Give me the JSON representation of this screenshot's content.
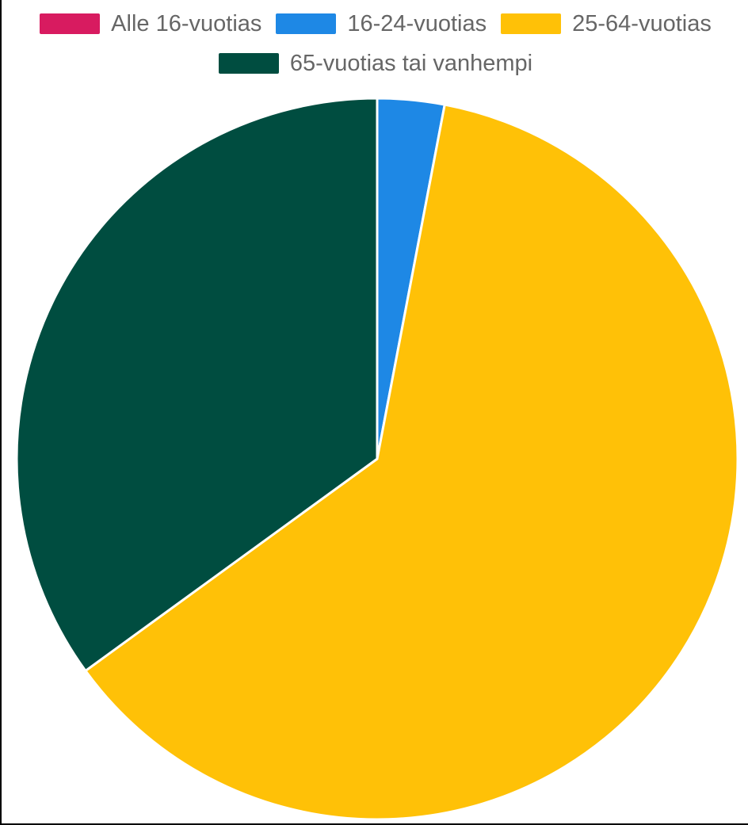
{
  "chart_data": {
    "type": "pie",
    "title": "",
    "categories": [
      "Alle 16-vuotias",
      "16-24-vuotias",
      "25-64-vuotias",
      "65-vuotias tai vanhempi"
    ],
    "values": [
      0,
      3,
      62,
      35
    ],
    "colors": [
      "#d81b60",
      "#1e88e5",
      "#ffc107",
      "#004d40"
    ],
    "legend_position": "top",
    "start_angle_deg": 0,
    "direction": "clockwise"
  }
}
